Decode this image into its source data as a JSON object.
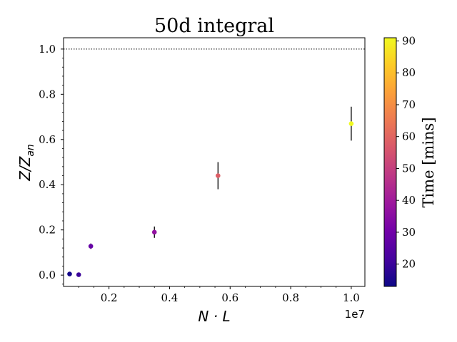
{
  "chart_data": {
    "type": "scatter",
    "title": "50d integral",
    "xlabel": "N · L",
    "ylabel": "Z/Z_an",
    "x_offset_label": "1e7",
    "x_scale": 10000000,
    "xlim": [
      0.05,
      1.045
    ],
    "ylim": [
      -0.05,
      1.05
    ],
    "x_ticks": [
      0.2,
      0.4,
      0.6,
      0.8,
      1.0
    ],
    "x_tick_labels": [
      "0.2",
      "0.4",
      "0.6",
      "0.8",
      "1.0"
    ],
    "y_ticks": [
      0.0,
      0.2,
      0.4,
      0.6,
      0.8,
      1.0
    ],
    "y_tick_labels": [
      "0.0",
      "0.2",
      "0.4",
      "0.6",
      "0.8",
      "1.0"
    ],
    "reference_line": {
      "y": 1.0,
      "style": "dotted"
    },
    "grid": false,
    "points": [
      {
        "x": 0.07,
        "y": 0.005,
        "yerr": 0.0,
        "time": 14
      },
      {
        "x": 0.1,
        "y": 0.002,
        "yerr": 0.0,
        "time": 20
      },
      {
        "x": 0.14,
        "y": 0.128,
        "yerr": 0.012,
        "time": 28
      },
      {
        "x": 0.35,
        "y": 0.19,
        "yerr": 0.025,
        "time": 37
      },
      {
        "x": 0.56,
        "y": 0.44,
        "yerr": 0.06,
        "time": 58
      },
      {
        "x": 1.0,
        "y": 0.67,
        "yerr": 0.075,
        "time": 91
      }
    ],
    "colorbar": {
      "label": "Time [mins]",
      "range": [
        13,
        91
      ],
      "ticks": [
        20,
        30,
        40,
        50,
        60,
        70,
        80,
        90
      ],
      "tick_labels": [
        "20",
        "30",
        "40",
        "50",
        "60",
        "70",
        "80",
        "90"
      ],
      "colormap": "plasma",
      "stops": [
        "#0d0887",
        "#46039f",
        "#7201a8",
        "#9c179e",
        "#bd3786",
        "#d8576b",
        "#ed7953",
        "#fb9f3a",
        "#fdca26",
        "#f0f921"
      ]
    }
  }
}
